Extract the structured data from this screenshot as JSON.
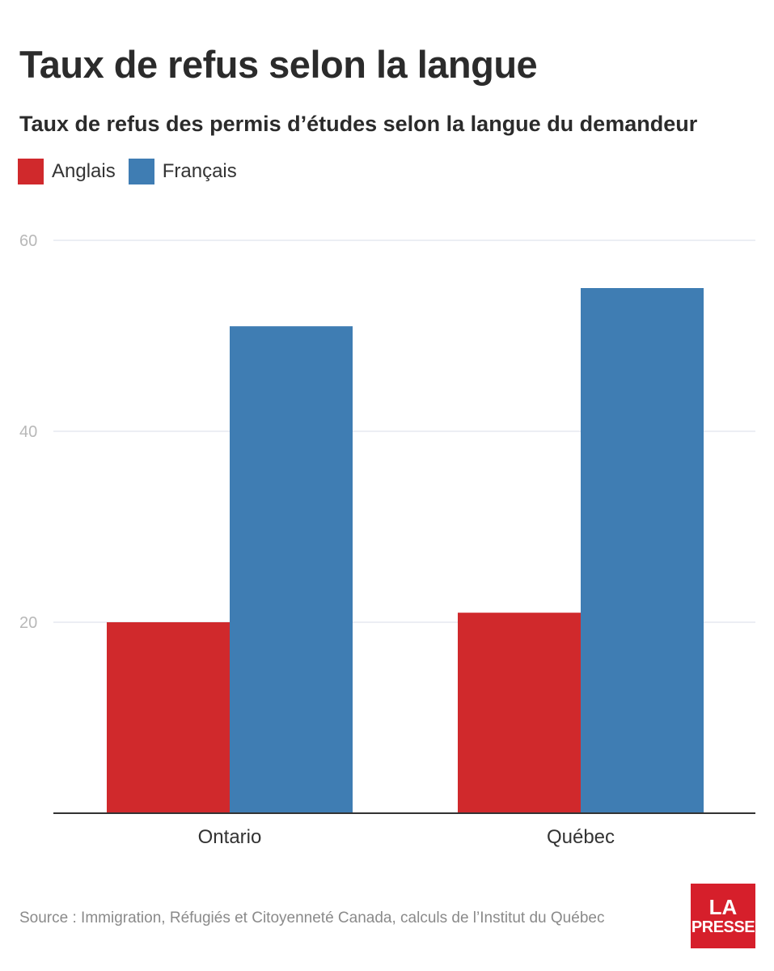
{
  "header": {
    "title": "Taux de refus selon la langue"
  },
  "chart_data": {
    "type": "bar",
    "subtitle": "Taux de refus des permis d’études selon la langue du demandeur",
    "categories": [
      "Ontario",
      "Québec"
    ],
    "series": [
      {
        "name": "Anglais",
        "values": [
          20,
          21
        ],
        "color": "#d0292c"
      },
      {
        "name": "Français",
        "values": [
          51,
          55
        ],
        "color": "#3f7db3"
      }
    ],
    "yticks": [
      20,
      40,
      60
    ],
    "ylim": [
      0,
      60
    ],
    "grid": true,
    "legend_position": "top-left"
  },
  "footer": {
    "source": "Source : Immigration, Réfugiés et Citoyenneté Canada, calculs de l’Institut du Québec",
    "logo_line1": "LA",
    "logo_line2": "PRESSE"
  }
}
